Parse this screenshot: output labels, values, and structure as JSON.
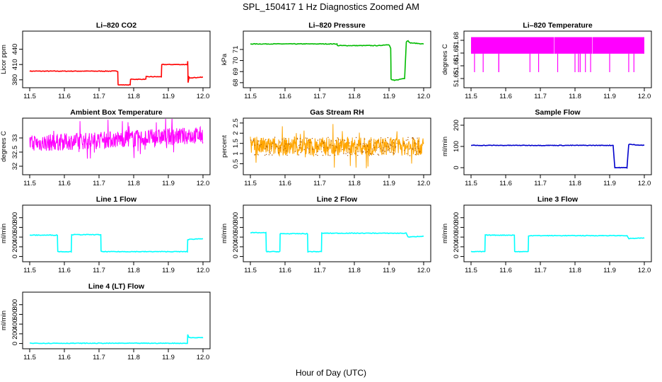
{
  "figure": {
    "title": "SPL_150417  1 Hz Diagnostics Zoomed AM",
    "xlabel": "Hour of Day (UTC)"
  },
  "chart_data": [
    {
      "type": "line",
      "title": "Li–820 CO2",
      "ylabel": "Licor ppm",
      "color": "#ff0000",
      "xlim": [
        11.5,
        12.0
      ],
      "ylim": [
        370,
        470
      ],
      "yticks": [
        380,
        410,
        440
      ],
      "x": [
        11.5,
        11.754,
        11.755,
        11.79,
        11.791,
        11.835,
        11.836,
        11.88,
        11.881,
        11.955,
        11.956,
        11.957,
        11.96,
        11.961,
        12.0
      ],
      "y": [
        397,
        397,
        370,
        370,
        381,
        381,
        386,
        386,
        410,
        410,
        416,
        375,
        385,
        384,
        385
      ]
    },
    {
      "type": "line",
      "title": "Li–820 Pressure",
      "ylabel": "kPa",
      "color": "#00bb00",
      "xlim": [
        11.5,
        12.0
      ],
      "ylim": [
        67.8,
        72.4
      ],
      "yticks": [
        68,
        69,
        70,
        71
      ],
      "x": [
        11.5,
        11.75,
        11.751,
        11.87,
        11.9,
        11.905,
        11.906,
        11.915,
        11.93,
        11.945,
        11.95,
        11.955,
        11.96,
        12.0
      ],
      "y": [
        71.5,
        71.5,
        71.35,
        71.35,
        71.45,
        71.1,
        68.3,
        68.2,
        68.3,
        68.4,
        71.7,
        71.8,
        71.6,
        71.5
      ]
    },
    {
      "type": "line",
      "title": "Li–820 Temperature",
      "ylabel": "degrees C",
      "color": "#ff00ff",
      "xlim": [
        11.5,
        12.0
      ],
      "ylim": [
        51.645,
        51.685
      ],
      "yticks": [
        51.65,
        51.66,
        51.67,
        51.68
      ],
      "band": [
        51.6695,
        51.6825
      ],
      "spikes_x": [
        11.51,
        11.535,
        11.58,
        11.58,
        11.67,
        11.695,
        11.75,
        11.8,
        11.81,
        11.815,
        11.83,
        11.845,
        11.9,
        11.955,
        11.97
      ],
      "spike_min": 51.655
    },
    {
      "type": "line",
      "title": "Ambient Box Temperature",
      "ylabel": "degrees C",
      "color": "#ff00ff",
      "xlim": [
        11.5,
        12.0
      ],
      "ylim": [
        31.8,
        33.6
      ],
      "yticks": [
        32.0,
        32.5,
        33.0
      ],
      "noise": {
        "start": [
          32.5,
          33.1
        ],
        "end": [
          32.8,
          33.4
        ],
        "amplitude": 0.3
      }
    },
    {
      "type": "line",
      "title": "Gas Stream RH",
      "ylabel": "percent",
      "color": "#ffa500",
      "marker": "#aa5500",
      "xlim": [
        11.5,
        12.0
      ],
      "ylim": [
        0.1,
        2.6
      ],
      "yticks": [
        0.5,
        1.0,
        1.5,
        2.0,
        2.5
      ],
      "noise": {
        "mean": 1.35,
        "amplitude": 0.45
      }
    },
    {
      "type": "line",
      "title": "Sample Flow",
      "ylabel": "ml/min",
      "color": "#0000cc",
      "xlim": [
        11.5,
        12.0
      ],
      "ylim": [
        -20,
        220
      ],
      "yticks": [
        0,
        100,
        200
      ],
      "x": [
        11.5,
        11.91,
        11.915,
        11.95,
        11.955,
        12.0
      ],
      "y": [
        105,
        105,
        0,
        0,
        110,
        105
      ]
    },
    {
      "type": "line",
      "title": "Line 1 Flow",
      "ylabel": "ml/min",
      "color": "#00ffff",
      "xlim": [
        11.5,
        12.0
      ],
      "ylim": [
        -50,
        1000
      ],
      "yticks": [
        0,
        200,
        400,
        600,
        800
      ],
      "x": [
        11.5,
        11.58,
        11.581,
        11.62,
        11.621,
        11.705,
        11.706,
        11.955,
        11.956,
        12.0
      ],
      "y": [
        440,
        440,
        100,
        100,
        450,
        450,
        100,
        100,
        350,
        370
      ]
    },
    {
      "type": "line",
      "title": "Line 2 Flow",
      "ylabel": "ml/min",
      "color": "#00ffff",
      "xlim": [
        11.5,
        12.0
      ],
      "ylim": [
        -50,
        1000
      ],
      "yticks": [
        0,
        200,
        400,
        600,
        800
      ],
      "x": [
        11.5,
        11.545,
        11.546,
        11.585,
        11.586,
        11.665,
        11.666,
        11.705,
        11.706,
        11.95,
        11.955,
        12.0
      ],
      "y": [
        490,
        490,
        100,
        100,
        470,
        470,
        100,
        100,
        480,
        480,
        400,
        420
      ]
    },
    {
      "type": "line",
      "title": "Line 3 Flow",
      "ylabel": "ml/min",
      "color": "#00ffff",
      "xlim": [
        11.5,
        12.0
      ],
      "ylim": [
        -50,
        1000
      ],
      "yticks": [
        0,
        200,
        400,
        600,
        800
      ],
      "x": [
        11.5,
        11.54,
        11.541,
        11.625,
        11.626,
        11.665,
        11.666,
        11.95,
        11.955,
        12.0
      ],
      "y": [
        100,
        100,
        440,
        440,
        100,
        100,
        430,
        430,
        370,
        380
      ]
    },
    {
      "type": "line",
      "title": "Line 4 (LT) Flow",
      "ylabel": "ml/min",
      "color": "#00ffff",
      "xlim": [
        11.5,
        12.0
      ],
      "ylim": [
        -50,
        1000
      ],
      "yticks": [
        0,
        200,
        400,
        600,
        800
      ],
      "x": [
        11.5,
        11.955,
        11.956,
        11.96,
        12.0
      ],
      "y": [
        5,
        5,
        180,
        120,
        120
      ]
    }
  ],
  "xticks": [
    11.5,
    11.6,
    11.7,
    11.8,
    11.9,
    12.0
  ],
  "xtick_labels": [
    "11.5",
    "11.6",
    "11.7",
    "11.8",
    "11.9",
    "12.0"
  ]
}
